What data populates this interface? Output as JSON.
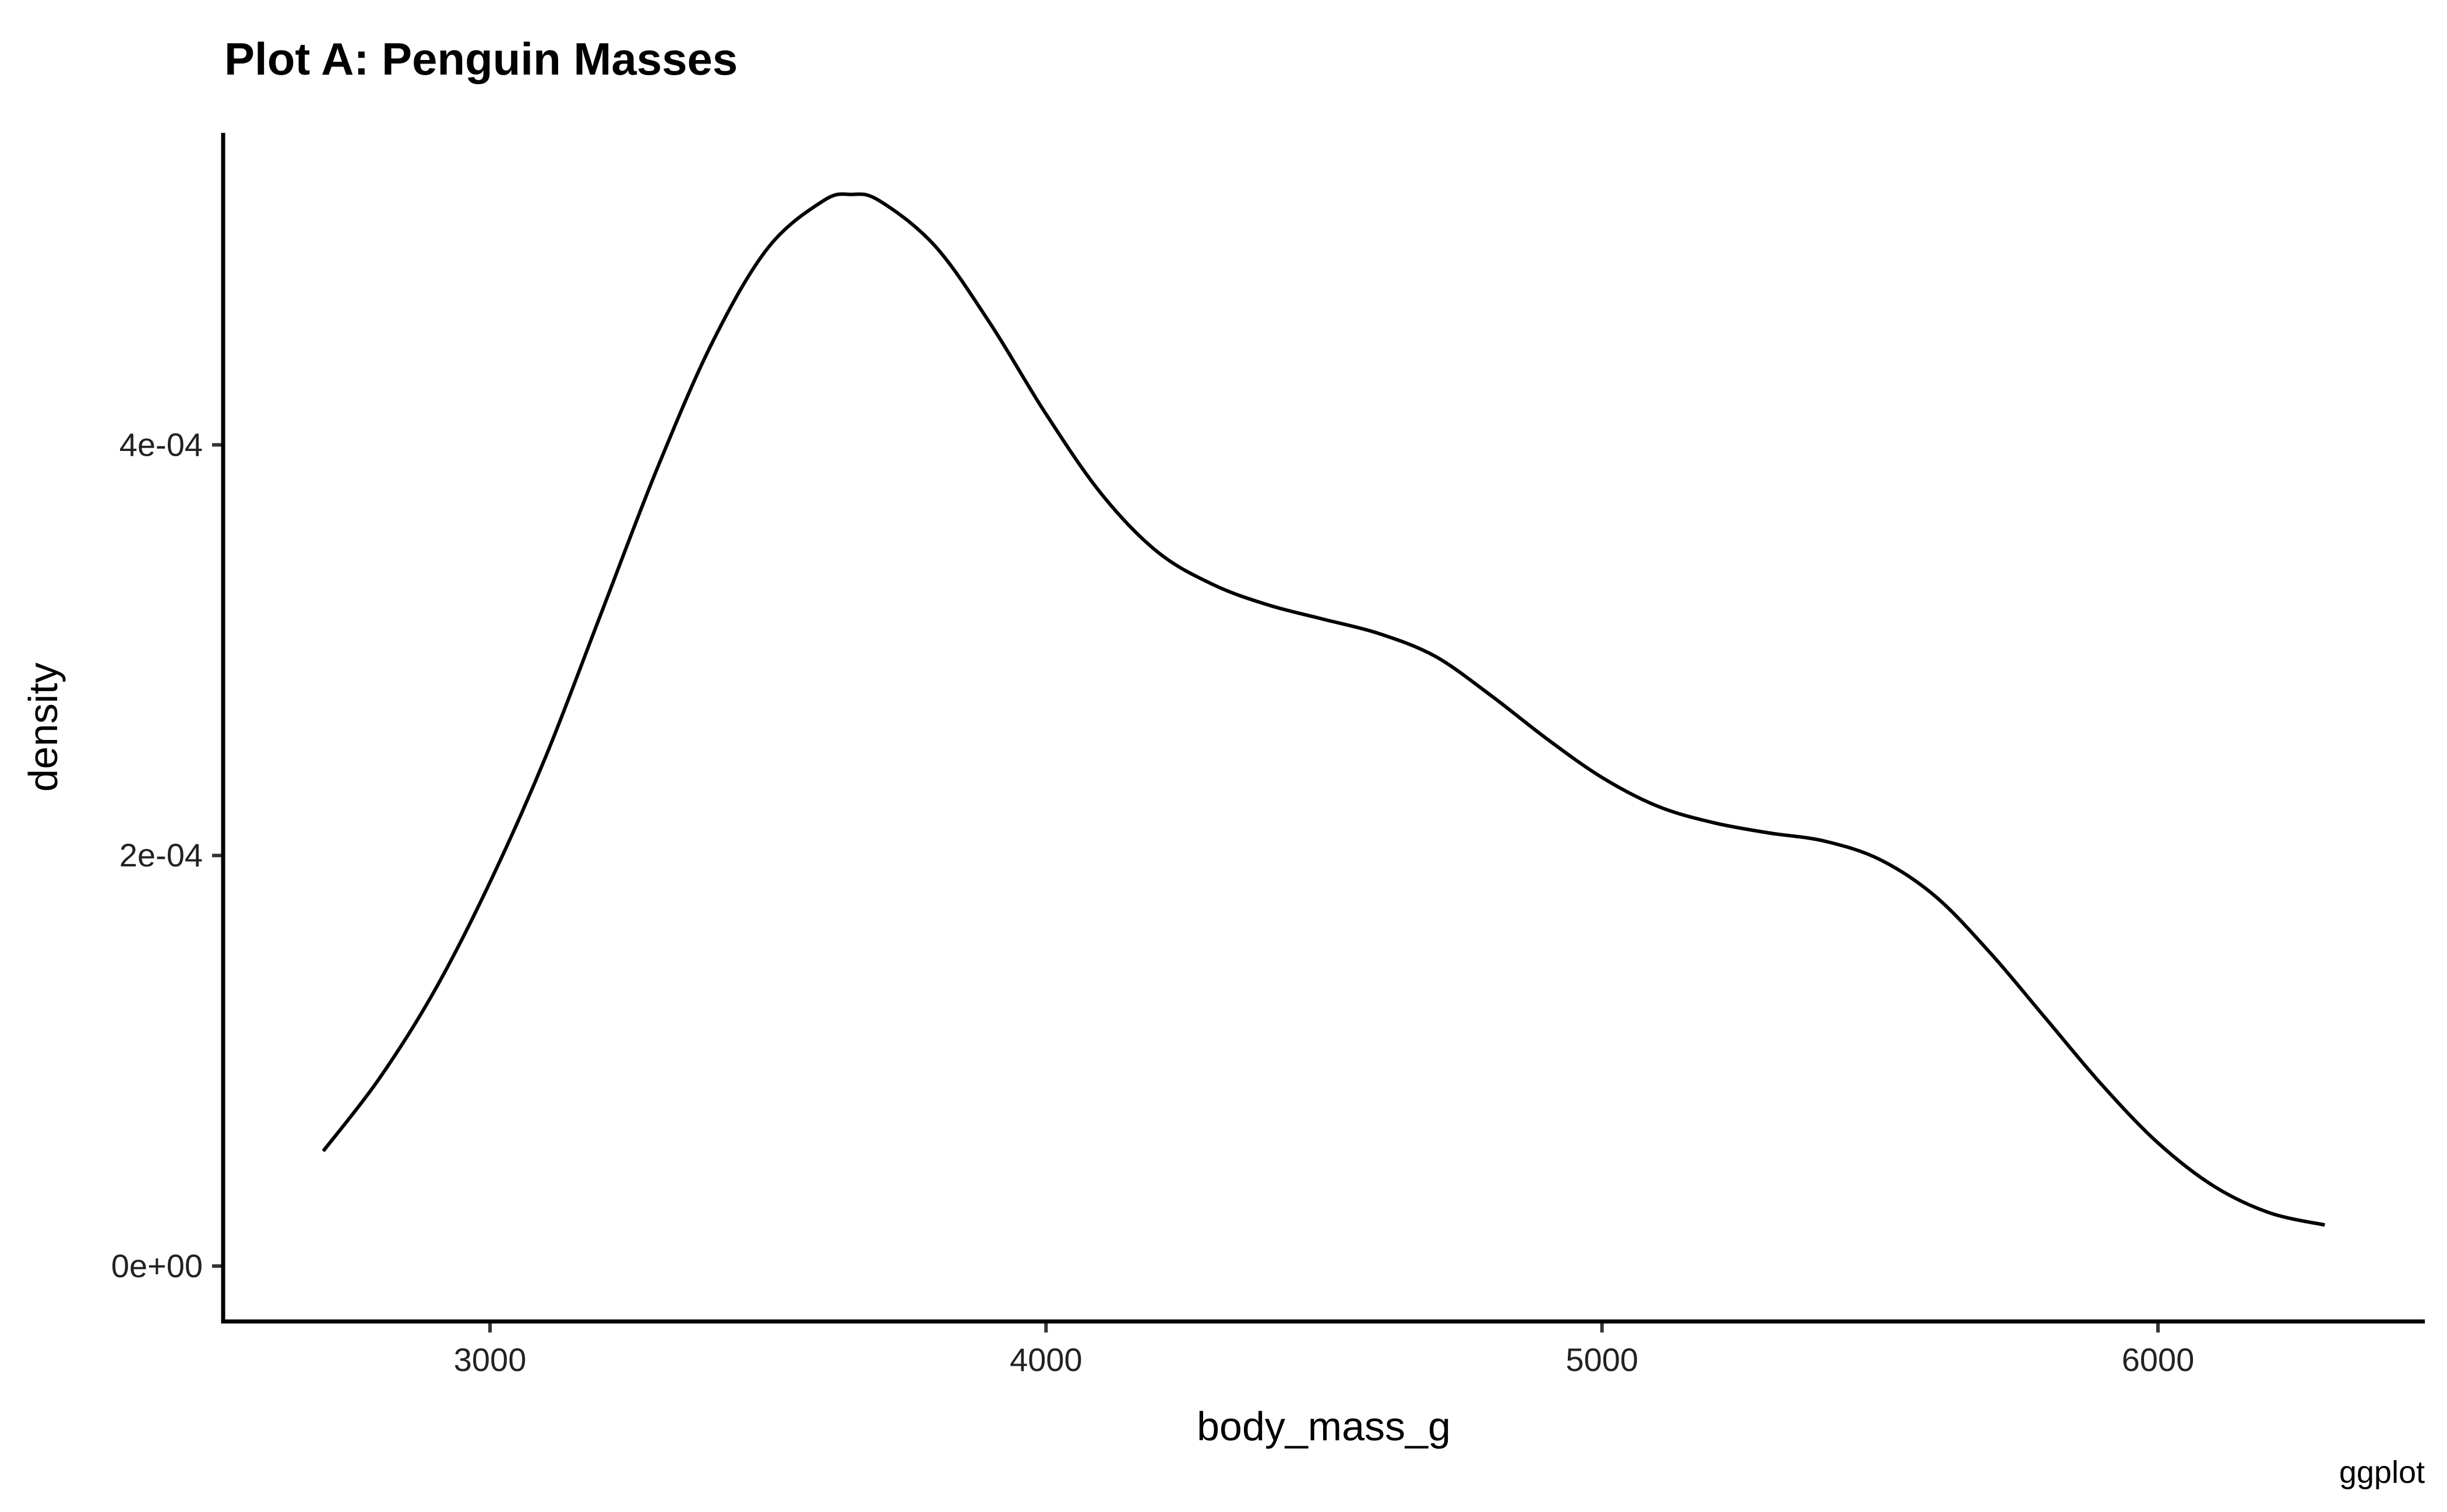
{
  "chart_data": {
    "type": "line",
    "title": "Plot A: Penguin Masses",
    "xlabel": "body_mass_g",
    "ylabel": "density",
    "caption": "ggplot",
    "xlim": [
      2520,
      6480
    ],
    "ylim": [
      -2.7e-05,
      0.000552
    ],
    "x_ticks": [
      3000,
      4000,
      5000,
      6000
    ],
    "x_tick_labels": [
      "3000",
      "4000",
      "5000",
      "6000"
    ],
    "y_ticks": [
      0,
      0.0002,
      0.0004
    ],
    "y_tick_labels": [
      "0e+00",
      "2e-04",
      "4e-04"
    ],
    "grid": false,
    "legend": "none",
    "line_color": "#000000",
    "series": [
      {
        "x": [
          2700,
          2800,
          2900,
          3000,
          3100,
          3200,
          3300,
          3400,
          3500,
          3600,
          3650,
          3700,
          3800,
          3900,
          4000,
          4100,
          4200,
          4300,
          4400,
          4500,
          4600,
          4700,
          4800,
          4900,
          5000,
          5100,
          5200,
          5300,
          5400,
          5500,
          5600,
          5700,
          5800,
          5900,
          6000,
          6100,
          6200,
          6300
        ],
        "y": [
          5.6e-05,
          9.1e-05,
          0.000134,
          0.000187,
          0.000248,
          0.000318,
          0.000388,
          0.00045,
          0.000496,
          0.000519,
          0.000522,
          0.000519,
          0.000497,
          0.000459,
          0.000415,
          0.000376,
          0.000348,
          0.000332,
          0.000322,
          0.000315,
          0.000308,
          0.000297,
          0.000278,
          0.000257,
          0.000238,
          0.000224,
          0.000216,
          0.000211,
          0.000207,
          0.000198,
          0.00018,
          0.000152,
          0.00012,
          8.8e-05,
          6e-05,
          3.9e-05,
          2.6e-05,
          2e-05
        ]
      }
    ]
  }
}
